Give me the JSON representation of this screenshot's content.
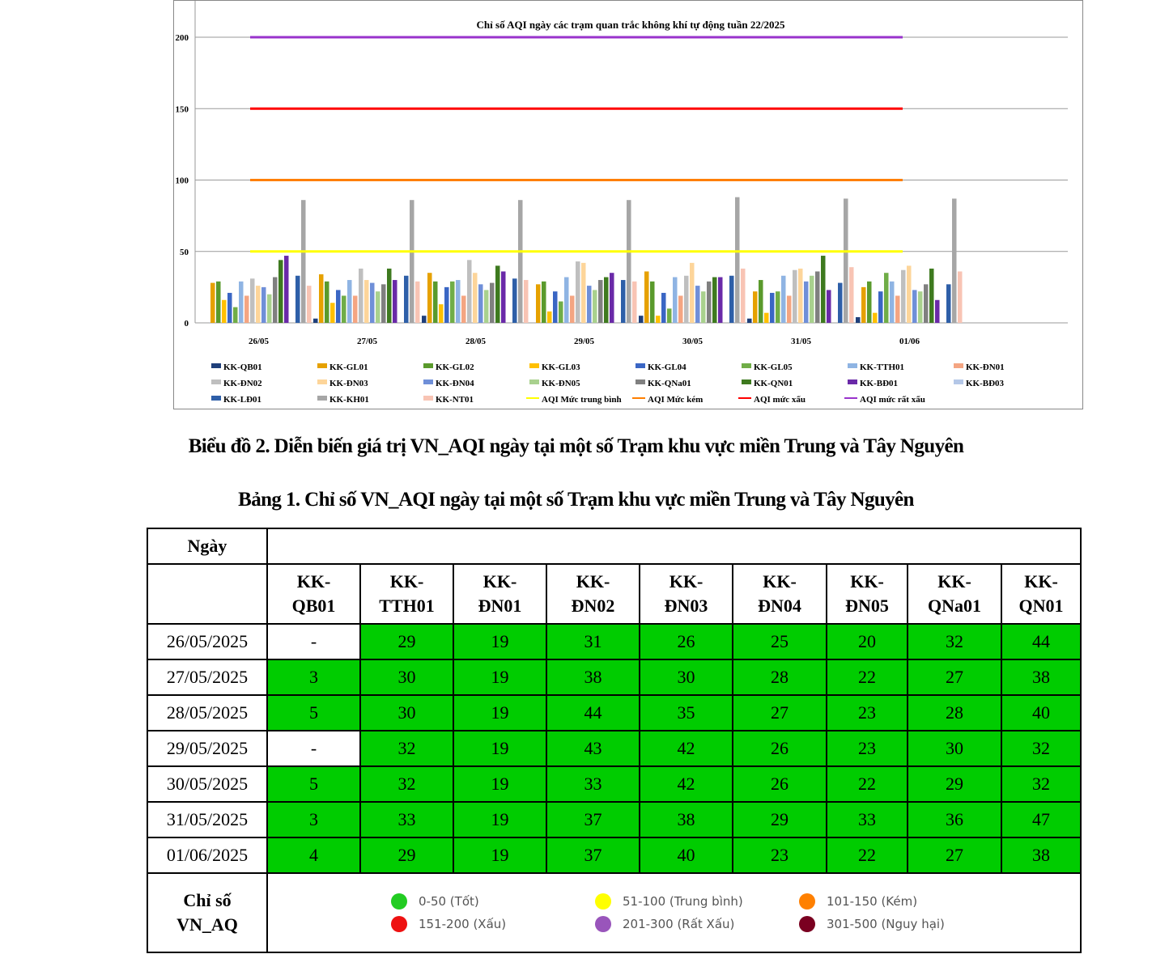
{
  "chart_data": {
    "type": "bar",
    "title": "Chỉ số AQI ngày các trạm quan trắc không khí tự động tuần 22/2025",
    "categories": [
      "26/05",
      "27/05",
      "28/05",
      "29/05",
      "30/05",
      "31/05",
      "01/06"
    ],
    "ylim": [
      0,
      210
    ],
    "yticks": [
      0,
      50,
      100,
      150,
      200
    ],
    "grid": true,
    "legend_position": "bottom",
    "series": [
      {
        "name": "KK-QB01",
        "color": "#1f3f7a",
        "values": [
          null,
          3,
          5,
          null,
          5,
          3,
          4
        ]
      },
      {
        "name": "KK-GL01",
        "color": "#e6a100",
        "values": [
          28,
          34,
          35,
          27,
          36,
          22,
          25
        ]
      },
      {
        "name": "KK-GL02",
        "color": "#5a9a2c",
        "values": [
          29,
          29,
          29,
          29,
          29,
          30,
          29
        ]
      },
      {
        "name": "KK-GL03",
        "color": "#ffc000",
        "values": [
          16,
          14,
          13,
          8,
          5,
          7,
          7
        ]
      },
      {
        "name": "KK-GL04",
        "color": "#3a66c4",
        "values": [
          21,
          23,
          25,
          22,
          21,
          21,
          22
        ]
      },
      {
        "name": "KK-GL05",
        "color": "#70ad47",
        "values": [
          11,
          19,
          29,
          15,
          10,
          22,
          35
        ]
      },
      {
        "name": "KK-TTH01",
        "color": "#8fb4e3",
        "values": [
          29,
          30,
          30,
          32,
          32,
          33,
          29
        ]
      },
      {
        "name": "KK-ĐN01",
        "color": "#f4a582",
        "values": [
          19,
          19,
          19,
          19,
          19,
          19,
          19
        ]
      },
      {
        "name": "KK-ĐN02",
        "color": "#bfbfbf",
        "values": [
          31,
          38,
          44,
          43,
          33,
          37,
          37
        ]
      },
      {
        "name": "KK-ĐN03",
        "color": "#fdd59a",
        "values": [
          26,
          30,
          35,
          42,
          42,
          38,
          40
        ]
      },
      {
        "name": "KK-ĐN04",
        "color": "#6f8fd8",
        "values": [
          25,
          28,
          27,
          26,
          26,
          29,
          23
        ]
      },
      {
        "name": "KK-ĐN05",
        "color": "#a9d18e",
        "values": [
          20,
          22,
          23,
          23,
          22,
          33,
          22
        ]
      },
      {
        "name": "KK-QNa01",
        "color": "#808080",
        "values": [
          32,
          27,
          28,
          30,
          29,
          36,
          27
        ]
      },
      {
        "name": "KK-QN01",
        "color": "#3e7a1f",
        "values": [
          44,
          38,
          40,
          32,
          32,
          47,
          38
        ]
      },
      {
        "name": "KK-BĐ01",
        "color": "#6a2aa8",
        "values": [
          47,
          30,
          36,
          35,
          32,
          23,
          16
        ]
      },
      {
        "name": "KK-BĐ03",
        "color": "#b4c7e7",
        "values": [
          null,
          null,
          null,
          null,
          null,
          null,
          null
        ]
      },
      {
        "name": "KK-LĐ01",
        "color": "#2e5fa8",
        "values": [
          33,
          33,
          31,
          30,
          33,
          28,
          27
        ]
      },
      {
        "name": "KK-KH01",
        "color": "#a6a6a6",
        "values": [
          86,
          86,
          86,
          86,
          88,
          87,
          87
        ]
      },
      {
        "name": "KK-NT01",
        "color": "#f8c4b4",
        "values": [
          26,
          29,
          30,
          29,
          38,
          39,
          36
        ]
      }
    ],
    "reference_lines": [
      {
        "name": "AQI Mức trung bình",
        "value": 50,
        "color": "#ffff00"
      },
      {
        "name": "AQI Mức kém",
        "value": 100,
        "color": "#ff7f00"
      },
      {
        "name": "AQI mức xấu",
        "value": 150,
        "color": "#ff0000"
      },
      {
        "name": "AQI mức rất xấu",
        "value": 200,
        "color": "#9933cc"
      }
    ]
  },
  "chart_caption": "Biểu đồ 2. Diễn biến giá trị VN_AQI ngày tại một số Trạm khu vực miền Trung và Tây Nguyên",
  "table_caption": "Bảng 1. Chỉ số VN_AQI ngày tại một số Trạm khu vực miền Trung và Tây Nguyên",
  "table": {
    "date_header": "Ngày",
    "stations": [
      "KK-\nQB01",
      "KK-\nTTH01",
      "KK-\nĐN01",
      "KK-\nĐN02",
      "KK-\nĐN03",
      "KK-\nĐN04",
      "KK-\nĐN05",
      "KK-\nQNa01",
      "KK-\nQN01"
    ],
    "rows": [
      {
        "date": "26/05/2025",
        "values": [
          "-",
          "29",
          "19",
          "31",
          "26",
          "25",
          "20",
          "32",
          "44"
        ]
      },
      {
        "date": "27/05/2025",
        "values": [
          "3",
          "30",
          "19",
          "38",
          "30",
          "28",
          "22",
          "27",
          "38"
        ]
      },
      {
        "date": "28/05/2025",
        "values": [
          "5",
          "30",
          "19",
          "44",
          "35",
          "27",
          "23",
          "28",
          "40"
        ]
      },
      {
        "date": "29/05/2025",
        "values": [
          "-",
          "32",
          "19",
          "43",
          "42",
          "26",
          "23",
          "30",
          "32"
        ]
      },
      {
        "date": "30/05/2025",
        "values": [
          "5",
          "32",
          "19",
          "33",
          "42",
          "26",
          "22",
          "29",
          "32"
        ]
      },
      {
        "date": "31/05/2025",
        "values": [
          "3",
          "33",
          "19",
          "37",
          "38",
          "29",
          "33",
          "36",
          "47"
        ]
      },
      {
        "date": "01/06/2025",
        "values": [
          "4",
          "29",
          "19",
          "37",
          "40",
          "23",
          "22",
          "27",
          "38"
        ]
      }
    ],
    "legend_label": "Chỉ số\nVN_AQ",
    "legend": [
      {
        "label": "0-50 (Tốt)",
        "color": "#22cc22"
      },
      {
        "label": "51-100 (Trung bình)",
        "color": "#ffff00"
      },
      {
        "label": "101-150 (Kém)",
        "color": "#ff8000"
      },
      {
        "label": "151-200 (Xấu)",
        "color": "#ee1111"
      },
      {
        "label": "201-300 (Rất Xấu)",
        "color": "#9955bb"
      },
      {
        "label": "301-500 (Nguy hại)",
        "color": "#7a0020"
      }
    ]
  }
}
